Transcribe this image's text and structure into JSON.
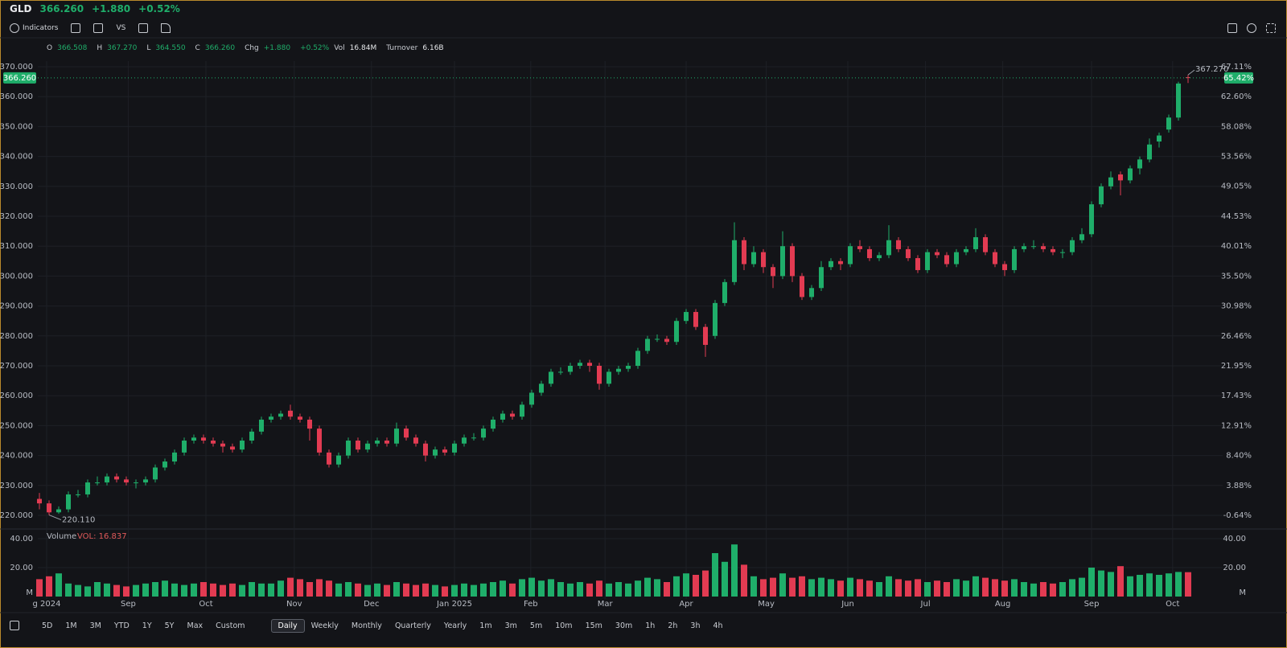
{
  "header": {
    "symbol": "GLD",
    "price": "366.260",
    "change": "+1.880",
    "change_pct": "+0.52%"
  },
  "toolbar": {
    "indicators": "Indicators",
    "vs": "VS"
  },
  "info": {
    "items": [
      {
        "label": "O",
        "value": "366.508"
      },
      {
        "label": "H",
        "value": "367.270"
      },
      {
        "label": "L",
        "value": "364.550"
      },
      {
        "label": "C",
        "value": "366.260"
      },
      {
        "label": "Chg",
        "value": "+1.880"
      },
      {
        "label": "+0.52%"
      },
      {
        "label": "Vol",
        "value": "16.84M"
      },
      {
        "label": "Turnover",
        "value": "6.16B"
      }
    ]
  },
  "periods": {
    "items": [
      "5D",
      "1M",
      "3M",
      "YTD",
      "1Y",
      "5Y",
      "Max",
      "Custom",
      "Daily",
      "Weekly",
      "Monthly",
      "Quarterly",
      "Yearly",
      "1m",
      "3m",
      "5m",
      "10m",
      "15m",
      "30m",
      "1h",
      "2h",
      "3h",
      "4h"
    ],
    "selected": 8
  },
  "chart_data": [
    {
      "type": "candlestick",
      "up_color": "#1fae6a",
      "down_color": "#e23b52",
      "open": [
        225.5,
        224,
        221,
        222,
        227,
        227,
        231,
        231,
        233,
        232,
        231,
        231,
        232,
        236,
        238,
        241,
        245,
        246,
        245,
        244,
        243,
        242,
        245,
        248,
        252,
        253,
        255,
        253,
        252,
        249,
        241,
        237,
        240,
        245,
        242,
        244,
        245,
        244,
        249,
        246,
        244,
        240,
        242,
        241,
        244,
        246,
        246,
        249,
        252,
        254,
        253,
        257,
        261,
        264,
        268,
        268,
        270,
        271,
        270,
        264,
        268,
        269,
        270,
        275,
        279,
        279,
        278,
        285,
        288,
        283,
        280,
        291,
        298,
        312,
        304,
        308,
        303,
        300,
        310,
        300,
        293,
        296,
        303,
        305,
        304,
        310,
        309,
        306,
        307,
        312,
        309,
        306,
        302,
        308,
        307,
        304,
        308,
        309,
        313,
        308,
        304,
        302,
        309,
        310,
        310,
        309,
        308,
        308,
        312,
        314,
        324,
        330,
        334,
        332,
        336,
        339,
        345,
        349,
        353,
        366.508
      ],
      "high": [
        227.5,
        225,
        223,
        228,
        228.5,
        232,
        233,
        234,
        234,
        233,
        232,
        233,
        237,
        239,
        242,
        246,
        247,
        247,
        246,
        245,
        244,
        246,
        249,
        253,
        254,
        255,
        257,
        254,
        253,
        250,
        242,
        241,
        246,
        246,
        245,
        246,
        246,
        251,
        250,
        247,
        245,
        243,
        243,
        245,
        247,
        247.5,
        250,
        253,
        255,
        255,
        258,
        262,
        265,
        269,
        269.5,
        271,
        272,
        272,
        271,
        269,
        270,
        271,
        276,
        280,
        280.5,
        280,
        286,
        289,
        289,
        284,
        292,
        299,
        318,
        313,
        310,
        309,
        304,
        315,
        311,
        301,
        297,
        305,
        306,
        306,
        311,
        312,
        310,
        308,
        317,
        313,
        310,
        307,
        309,
        309,
        308,
        309,
        310,
        316,
        314,
        309,
        305,
        310,
        311,
        312,
        311,
        310,
        309,
        313,
        316,
        325,
        331,
        335,
        335,
        337,
        340,
        346,
        348,
        354,
        365,
        367.27
      ],
      "low": [
        222,
        220.11,
        220.5,
        221,
        226,
        226,
        230,
        230,
        231,
        230,
        229,
        230,
        231,
        235,
        237,
        240,
        244,
        244,
        243,
        241,
        241,
        241,
        244,
        247,
        251,
        252,
        252,
        251,
        245,
        240,
        236,
        236,
        239,
        241,
        241,
        243,
        243,
        243,
        245,
        243,
        238,
        239,
        240,
        240,
        243,
        245,
        245,
        248,
        251,
        252,
        252,
        256,
        260,
        263,
        267,
        267,
        269,
        268,
        262,
        263,
        267,
        268,
        269,
        274,
        278,
        277,
        277,
        284,
        282,
        273,
        279,
        290,
        297,
        302,
        303,
        301,
        296,
        299,
        298,
        292,
        292,
        295,
        302,
        302,
        303,
        308,
        305,
        305,
        306,
        308,
        305,
        301,
        301,
        306,
        303,
        303,
        307,
        308,
        307,
        303,
        300,
        301,
        308,
        309,
        308,
        307,
        306,
        307,
        311,
        313,
        323,
        329,
        327,
        331,
        334,
        338,
        343,
        348,
        352,
        364.55
      ],
      "close": [
        224,
        221,
        222,
        227,
        227,
        231,
        231,
        233,
        232,
        231,
        231,
        232,
        236,
        238,
        241,
        245,
        246,
        245,
        244,
        243,
        242,
        245,
        248,
        252,
        253,
        254,
        253,
        252,
        249,
        241,
        237,
        240,
        245,
        242,
        244,
        245,
        244,
        249,
        246,
        244,
        240,
        242,
        241,
        244,
        246,
        246,
        249,
        252,
        254,
        253,
        257,
        261,
        264,
        268,
        268,
        270,
        271,
        270,
        264,
        268,
        269,
        270,
        275,
        279,
        279,
        278,
        285,
        288,
        283,
        277,
        291,
        298,
        312,
        304,
        308,
        303,
        300,
        310,
        300,
        293,
        296,
        303,
        305,
        304,
        310,
        309,
        306,
        307,
        312,
        309,
        306,
        302,
        308,
        307,
        304,
        308,
        309,
        313,
        308,
        304,
        302,
        309,
        310,
        310,
        309,
        308,
        308,
        312,
        314,
        324,
        330,
        333,
        332,
        336,
        339,
        344,
        347,
        353,
        364.38,
        366.26
      ],
      "xlim": [
        0,
        119
      ],
      "xticks": [
        {
          "value": 0.75,
          "label": "g 2024"
        },
        {
          "value": 9.2,
          "label": "Sep"
        },
        {
          "value": 17.25,
          "label": "Oct"
        },
        {
          "value": 26.4,
          "label": "Nov"
        },
        {
          "value": 34.4,
          "label": "Dec"
        },
        {
          "value": 43,
          "label": "Jan 2025"
        },
        {
          "value": 50.9,
          "label": "Feb"
        },
        {
          "value": 58.6,
          "label": "Mar"
        },
        {
          "value": 67,
          "label": "Apr"
        },
        {
          "value": 75.3,
          "label": "May"
        },
        {
          "value": 83.75,
          "label": "Jun"
        },
        {
          "value": 91.8,
          "label": "Jul"
        },
        {
          "value": 99.8,
          "label": "Aug"
        },
        {
          "value": 109,
          "label": "Sep"
        },
        {
          "value": 117.4,
          "label": "Oct"
        }
      ],
      "ylim": [
        220,
        370
      ],
      "yticks": [
        {
          "value": 370,
          "label": "370.000"
        },
        {
          "value": 360,
          "label": "360.000"
        },
        {
          "value": 350,
          "label": "350.000"
        },
        {
          "value": 340,
          "label": "340.000"
        },
        {
          "value": 330,
          "label": "330.000"
        },
        {
          "value": 320,
          "label": "320.000"
        },
        {
          "value": 310,
          "label": "310.000"
        },
        {
          "value": 300,
          "label": "300.000"
        },
        {
          "value": 290,
          "label": "290.000"
        },
        {
          "value": 280,
          "label": "280.000"
        },
        {
          "value": 270,
          "label": "270.000"
        },
        {
          "value": 260,
          "label": "260.000"
        },
        {
          "value": 250,
          "label": "250.000"
        },
        {
          "value": 240,
          "label": "240.000"
        },
        {
          "value": 230,
          "label": "230.000"
        },
        {
          "value": 220,
          "label": "220.000"
        }
      ],
      "y2lim": [
        -0.64,
        67.11
      ],
      "y2ticks": [
        {
          "value": 67.11,
          "label": "67.11%"
        },
        {
          "value": 62.6,
          "label": "62.60%"
        },
        {
          "value": 58.08,
          "label": "58.08%"
        },
        {
          "value": 53.56,
          "label": "53.56%"
        },
        {
          "value": 49.05,
          "label": "49.05%"
        },
        {
          "value": 44.53,
          "label": "44.53%"
        },
        {
          "value": 40.01,
          "label": "40.01%"
        },
        {
          "value": 35.5,
          "label": "35.50%"
        },
        {
          "value": 30.98,
          "label": "30.98%"
        },
        {
          "value": 26.46,
          "label": "26.46%"
        },
        {
          "value": 21.95,
          "label": "21.95%"
        },
        {
          "value": 17.43,
          "label": "17.43%"
        },
        {
          "value": 12.91,
          "label": "12.91%"
        },
        {
          "value": 8.4,
          "label": "8.40%"
        },
        {
          "value": 3.88,
          "label": "3.88%"
        },
        {
          "value": -0.64,
          "label": "-0.64%"
        }
      ],
      "last_price_label": "366.260",
      "y2_marker": {
        "value": 65.42,
        "label": "65.42%"
      },
      "high_label": "367.270",
      "low_label": "220.110",
      "grid": true
    },
    {
      "type": "bar",
      "title": "Volume",
      "legend": "VOL: 16.837",
      "values": [
        12,
        14,
        16,
        9,
        8,
        7,
        10,
        9,
        8,
        7,
        8,
        9,
        10,
        11,
        9,
        8,
        9,
        10,
        9,
        8,
        9,
        8,
        10,
        9,
        9,
        11,
        13,
        12,
        10,
        12,
        11,
        9,
        10,
        9,
        8,
        9,
        8,
        10,
        9,
        8,
        9,
        8,
        7,
        8,
        9,
        8,
        9,
        10,
        11,
        9,
        12,
        13,
        11,
        12,
        10,
        9,
        10,
        9,
        11,
        9,
        10,
        9,
        11,
        13,
        12,
        10,
        14,
        16,
        15,
        18,
        30,
        24,
        36,
        22,
        14,
        12,
        13,
        16,
        13,
        14,
        12,
        13,
        12,
        11,
        13,
        12,
        11,
        10,
        14,
        12,
        11,
        12,
        10,
        11,
        10,
        12,
        11,
        14,
        13,
        12,
        11,
        12,
        10,
        9,
        10,
        9,
        10,
        12,
        13,
        20,
        18,
        17,
        21,
        14,
        15,
        16,
        15,
        16,
        17,
        16.837
      ],
      "ylim": [
        0,
        40
      ],
      "yticks": [
        {
          "value": 0,
          "label": "M"
        },
        {
          "value": 20,
          "label": "20.00"
        },
        {
          "value": 40,
          "label": "40.00"
        }
      ]
    }
  ]
}
